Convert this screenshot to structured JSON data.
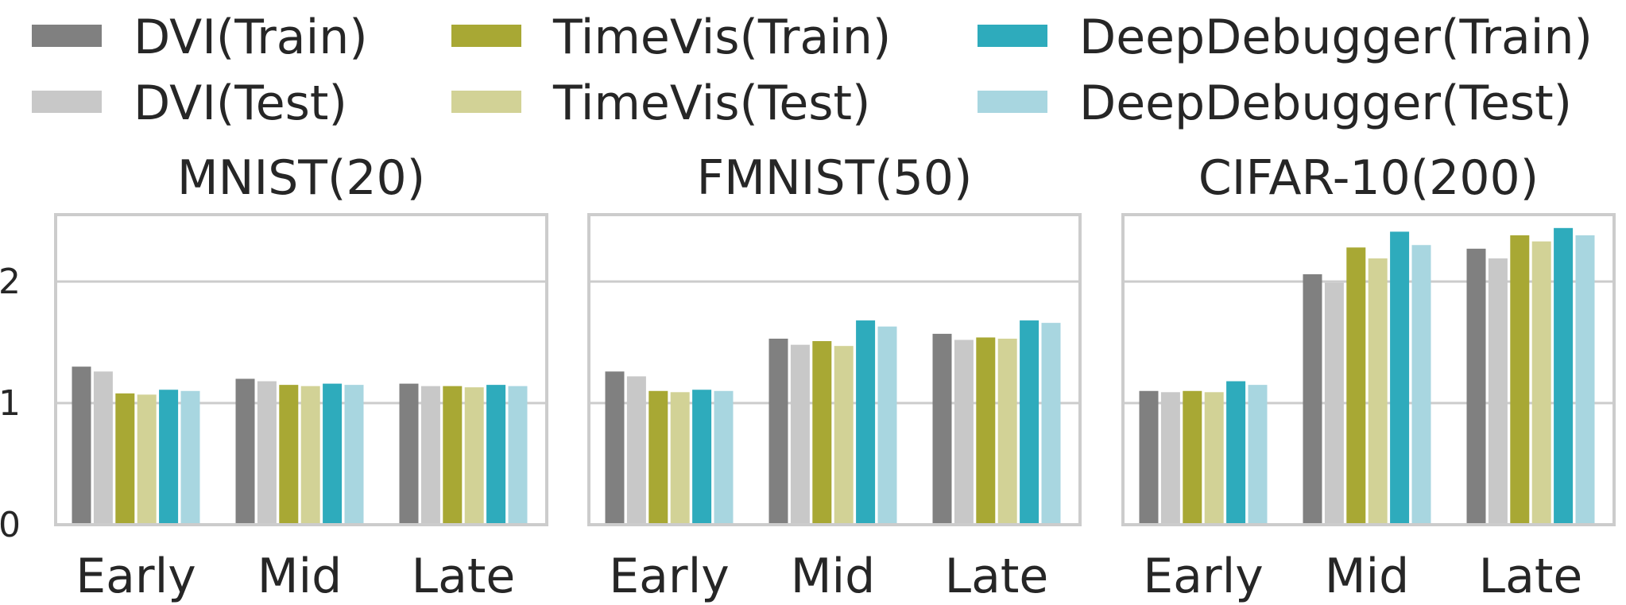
{
  "chart_data": {
    "type": "bar",
    "legend": {
      "placement": "top",
      "entries": [
        {
          "label": "DVI(Train)",
          "color": "#808080"
        },
        {
          "label": "DVI(Test)",
          "color": "#c8c8c8"
        },
        {
          "label": "TimeVis(Train)",
          "color": "#a8a834"
        },
        {
          "label": "TimeVis(Test)",
          "color": "#d2d296"
        },
        {
          "label": "DeepDebugger(Train)",
          "color": "#2eabbc"
        },
        {
          "label": "DeepDebugger(Test)",
          "color": "#a8d6e0"
        }
      ]
    },
    "series_names": [
      "DVI(Train)",
      "DVI(Test)",
      "TimeVis(Train)",
      "TimeVis(Test)",
      "DeepDebugger(Train)",
      "DeepDebugger(Test)"
    ],
    "series_colors": [
      "#808080",
      "#c8c8c8",
      "#a8a834",
      "#d2d296",
      "#2eabbc",
      "#a8d6e0"
    ],
    "ylim": [
      0,
      2.55
    ],
    "yticks": [
      {
        "value": 0,
        "label": "0"
      },
      {
        "value": 1,
        "label": "1"
      },
      {
        "value": 2,
        "label": "2"
      }
    ],
    "grid": true,
    "panels": [
      {
        "title": "MNIST(20)",
        "categories": [
          "Early",
          "Mid",
          "Late"
        ],
        "values": [
          [
            1.3,
            1.26,
            1.08,
            1.07,
            1.11,
            1.1
          ],
          [
            1.2,
            1.18,
            1.15,
            1.14,
            1.16,
            1.15
          ],
          [
            1.16,
            1.14,
            1.14,
            1.13,
            1.15,
            1.14
          ]
        ]
      },
      {
        "title": "FMNIST(50)",
        "categories": [
          "Early",
          "Mid",
          "Late"
        ],
        "values": [
          [
            1.26,
            1.22,
            1.1,
            1.09,
            1.11,
            1.1
          ],
          [
            1.53,
            1.48,
            1.51,
            1.47,
            1.68,
            1.63
          ],
          [
            1.57,
            1.52,
            1.54,
            1.53,
            1.68,
            1.66
          ]
        ]
      },
      {
        "title": "CIFAR-10(200)",
        "categories": [
          "Early",
          "Mid",
          "Late"
        ],
        "values": [
          [
            1.1,
            1.09,
            1.1,
            1.09,
            1.18,
            1.15
          ],
          [
            2.06,
            1.99,
            2.28,
            2.19,
            2.41,
            2.3
          ],
          [
            2.27,
            2.19,
            2.38,
            2.33,
            2.44,
            2.38
          ]
        ]
      }
    ]
  }
}
